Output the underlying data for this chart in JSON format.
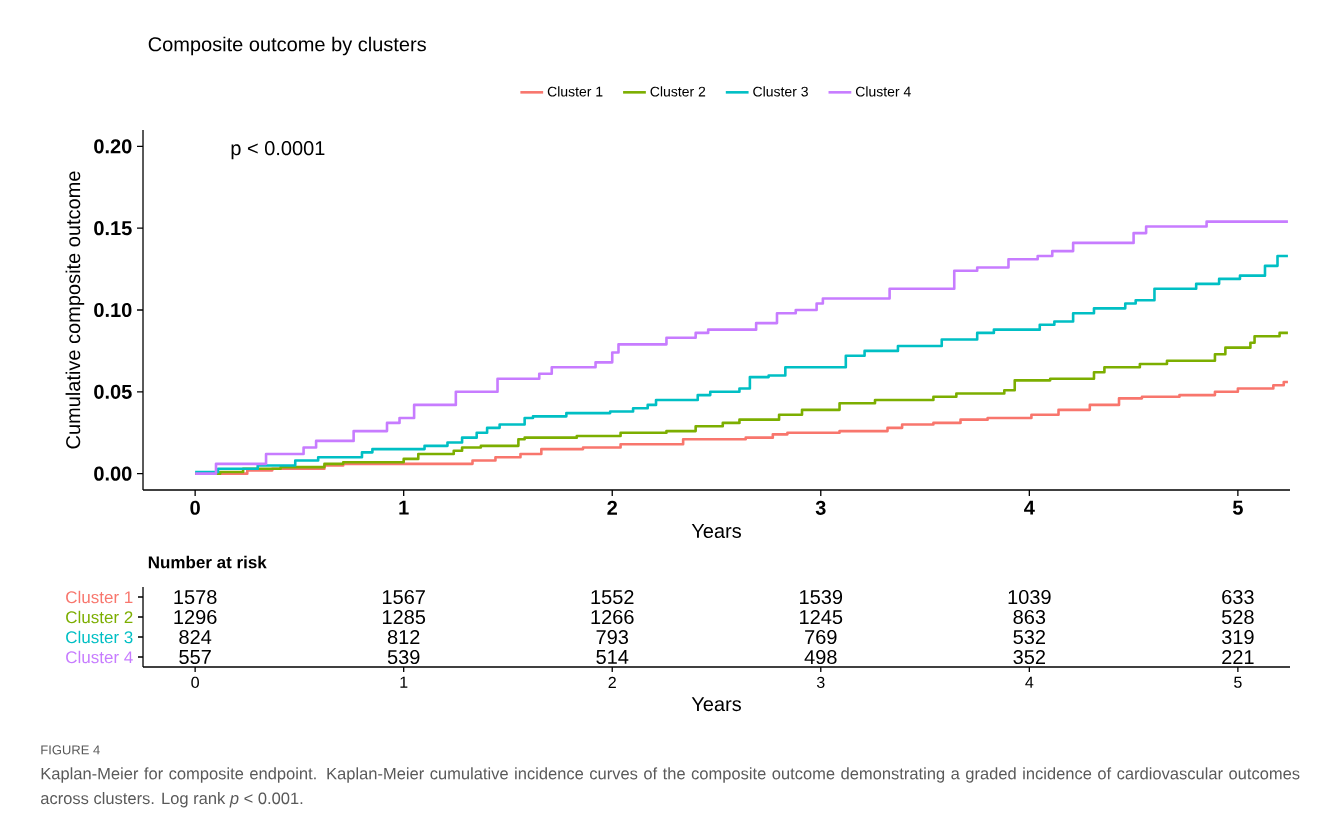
{
  "chart_data": [
    {
      "type": "step",
      "title": "Composite outcome by clusters",
      "xlabel": "Years",
      "ylabel": "Cumulative composite outcome",
      "xlim": [
        -0.25,
        5.25
      ],
      "ylim": [
        -0.01,
        0.21
      ],
      "xticks": [
        0,
        1,
        2,
        3,
        4,
        5
      ],
      "yticks": [
        {
          "value": 0,
          "label": "0.00"
        },
        {
          "value": 0.05,
          "label": "0.05"
        },
        {
          "value": 0.1,
          "label": "0.10"
        },
        {
          "value": 0.15,
          "label": "0.15"
        },
        {
          "value": 0.2,
          "label": "0.20"
        }
      ],
      "legend": "top",
      "marker": "none",
      "annotations": [
        "p < 0.0001"
      ],
      "series": [
        {
          "name": "Cluster 1",
          "color": "#f8766d",
          "x": [
            0,
            0.25,
            0.37,
            0.62,
            0.71,
            1.33,
            1.44,
            1.56,
            1.66,
            1.86,
            2.04,
            2.34,
            2.64,
            2.77,
            2.84,
            3.09,
            3.32,
            3.39,
            3.54,
            3.67,
            3.8,
            4.01,
            4.14,
            4.29,
            4.43,
            4.54,
            4.72,
            4.89,
            5.0,
            5.17,
            5.22,
            5.24
          ],
          "values": [
            0,
            0.002,
            0.003,
            0.005,
            0.006,
            0.008,
            0.01,
            0.012,
            0.015,
            0.016,
            0.018,
            0.021,
            0.022,
            0.024,
            0.025,
            0.026,
            0.028,
            0.03,
            0.031,
            0.033,
            0.034,
            0.036,
            0.039,
            0.042,
            0.046,
            0.047,
            0.048,
            0.05,
            0.052,
            0.054,
            0.056,
            0.056
          ]
        },
        {
          "name": "Cluster 2",
          "color": "#7cae00",
          "x": [
            0,
            0.12,
            0.23,
            0.41,
            0.62,
            0.71,
            1.0,
            1.07,
            1.24,
            1.28,
            1.37,
            1.55,
            1.58,
            1.83,
            2.04,
            2.26,
            2.4,
            2.53,
            2.61,
            2.8,
            2.91,
            3.09,
            3.26,
            3.54,
            3.65,
            3.88,
            3.93,
            4.1,
            4.31,
            4.36,
            4.53,
            4.66,
            4.89,
            4.94,
            5.06,
            5.08,
            5.2,
            5.24
          ],
          "values": [
            0,
            0.001,
            0.003,
            0.004,
            0.006,
            0.007,
            0.009,
            0.012,
            0.014,
            0.016,
            0.017,
            0.021,
            0.022,
            0.023,
            0.025,
            0.026,
            0.029,
            0.031,
            0.033,
            0.036,
            0.039,
            0.043,
            0.045,
            0.047,
            0.049,
            0.051,
            0.057,
            0.058,
            0.062,
            0.065,
            0.067,
            0.069,
            0.073,
            0.077,
            0.08,
            0.084,
            0.086,
            0.086
          ]
        },
        {
          "name": "Cluster 3",
          "color": "#00bfc4",
          "x": [
            0,
            0.11,
            0.3,
            0.48,
            0.59,
            0.8,
            0.85,
            1.1,
            1.21,
            1.28,
            1.35,
            1.4,
            1.46,
            1.58,
            1.62,
            1.78,
            1.99,
            2.1,
            2.17,
            2.21,
            2.41,
            2.47,
            2.61,
            2.66,
            2.75,
            2.83,
            3.12,
            3.21,
            3.37,
            3.58,
            3.75,
            3.83,
            4.05,
            4.12,
            4.21,
            4.31,
            4.46,
            4.51,
            4.6,
            4.8,
            4.91,
            5.01,
            5.13,
            5.19,
            5.24
          ],
          "values": [
            0.001,
            0.003,
            0.005,
            0.008,
            0.01,
            0.013,
            0.015,
            0.017,
            0.019,
            0.022,
            0.025,
            0.028,
            0.03,
            0.034,
            0.035,
            0.037,
            0.038,
            0.04,
            0.042,
            0.045,
            0.048,
            0.05,
            0.052,
            0.059,
            0.06,
            0.065,
            0.072,
            0.075,
            0.078,
            0.082,
            0.086,
            0.088,
            0.091,
            0.093,
            0.098,
            0.101,
            0.104,
            0.106,
            0.113,
            0.116,
            0.119,
            0.121,
            0.127,
            0.133,
            0.133
          ]
        },
        {
          "name": "Cluster 4",
          "color": "#c77cff",
          "x": [
            0,
            0.1,
            0.34,
            0.52,
            0.58,
            0.76,
            0.92,
            0.98,
            1.05,
            1.25,
            1.45,
            1.65,
            1.71,
            1.92,
            2.0,
            2.03,
            2.26,
            2.4,
            2.46,
            2.69,
            2.79,
            2.88,
            2.98,
            3.01,
            3.33,
            3.64,
            3.75,
            3.9,
            4.04,
            4.11,
            4.21,
            4.5,
            4.56,
            4.85,
            5.24
          ],
          "values": [
            0,
            0.006,
            0.012,
            0.016,
            0.02,
            0.026,
            0.031,
            0.034,
            0.042,
            0.05,
            0.058,
            0.061,
            0.065,
            0.068,
            0.074,
            0.079,
            0.083,
            0.086,
            0.088,
            0.092,
            0.098,
            0.1,
            0.104,
            0.107,
            0.113,
            0.124,
            0.126,
            0.131,
            0.133,
            0.136,
            0.141,
            0.147,
            0.151,
            0.154,
            0.154
          ]
        }
      ]
    },
    {
      "type": "heatmap",
      "title": "Number at risk",
      "xlabel": "Years",
      "categories": [
        "0",
        "1",
        "2",
        "3",
        "4",
        "5"
      ],
      "y_categories": [
        "Cluster 1",
        "Cluster 2",
        "Cluster 3",
        "Cluster 4"
      ],
      "data_labels": true,
      "annotations": [
        "FIGURE 4",
        "Kaplan-Meier for composite endpoint. Kaplan-Meier cumulative incidence curves of the composite outcome demonstrating a graded incidence of cardiovascular outcomes across clusters. Log rank *p* < 0.001."
      ],
      "cells": [
        [
          1578,
          1567,
          1552,
          1539,
          1039,
          633
        ],
        [
          1296,
          1285,
          1266,
          1245,
          863,
          528
        ],
        [
          824,
          812,
          793,
          769,
          532,
          319
        ],
        [
          557,
          539,
          514,
          498,
          352,
          221
        ]
      ]
    }
  ]
}
